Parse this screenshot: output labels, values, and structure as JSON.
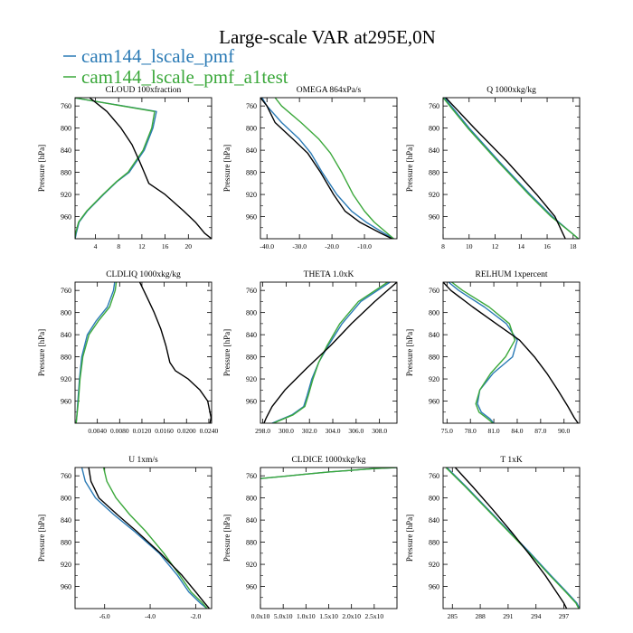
{
  "figure": {
    "title": "Large-scale VAR at295E,0N",
    "legend": [
      {
        "name": "cam144_lscale_pmf",
        "color": "#2a7ab5"
      },
      {
        "name": "cam144_lscale_pmf_a1test",
        "color": "#3ba83b"
      }
    ],
    "reference_color": "#000000"
  },
  "chart_data": [
    {
      "type": "line",
      "title": "CLOUD 100xfraction",
      "ylabel": "Pressure [hPa]",
      "xlim": [
        0.5,
        24
      ],
      "ylim": [
        745,
        1000
      ],
      "xticks": [
        4,
        8,
        12,
        16,
        20
      ],
      "xtick_labels": [
        "4",
        "8",
        "12",
        "16",
        "20"
      ],
      "yticks": [
        760,
        800,
        840,
        880,
        920,
        960
      ],
      "series": [
        {
          "y": [
            745,
            770,
            800,
            840,
            880,
            896,
            920,
            950,
            970,
            990,
            996,
            1000
          ],
          "x": [
            0.2,
            14.5,
            13.9,
            12.4,
            9.8,
            7.8,
            5.4,
            2.6,
            1.2,
            0.7,
            0.6,
            0.5
          ]
        },
        {
          "y": [
            745,
            770,
            800,
            840,
            880,
            896,
            920,
            950,
            970,
            990,
            996,
            1000
          ],
          "x": [
            0.3,
            14.2,
            13.7,
            12.2,
            9.6,
            7.7,
            5.3,
            2.5,
            1.1,
            0.6,
            0.5,
            0.5
          ]
        },
        {
          "y": [
            745,
            770,
            800,
            830,
            860,
            880,
            900,
            920,
            950,
            970,
            990,
            1000
          ],
          "x": [
            3.0,
            6.0,
            8.4,
            10.3,
            11.6,
            12.4,
            13.2,
            16.0,
            19.2,
            21.2,
            22.8,
            24.0
          ]
        }
      ]
    },
    {
      "type": "line",
      "title": "OMEGA 864xPa/s",
      "ylabel": "Pressure [hPa]",
      "xlim": [
        -42,
        0
      ],
      "ylim": [
        745,
        1000
      ],
      "xticks": [
        -40,
        -30,
        -20,
        -10
      ],
      "xtick_labels": [
        "-40.0",
        "-30.0",
        "-20.0",
        "-10.0"
      ],
      "yticks": [
        760,
        800,
        840,
        880,
        920,
        960
      ],
      "series": [
        {
          "y": [
            745,
            760,
            790,
            820,
            845,
            880,
            920,
            950,
            970,
            990,
            1000
          ],
          "x": [
            -41.5,
            -40.0,
            -35.5,
            -30.0,
            -26.5,
            -23.0,
            -18.5,
            -14.0,
            -9.5,
            -4.0,
            -1.0
          ]
        },
        {
          "y": [
            745,
            760,
            790,
            820,
            845,
            880,
            920,
            950,
            970,
            990,
            1000
          ],
          "x": [
            -37.5,
            -35.5,
            -29.5,
            -24.0,
            -20.5,
            -17.0,
            -13.5,
            -10.0,
            -7.0,
            -3.0,
            -1.0
          ]
        },
        {
          "y": [
            745,
            760,
            790,
            820,
            845,
            880,
            920,
            950,
            970,
            990,
            1000
          ],
          "x": [
            -42.0,
            -40.0,
            -37.5,
            -32.0,
            -27.5,
            -23.5,
            -19.5,
            -16.0,
            -11.5,
            -5.0,
            -1.5
          ]
        }
      ]
    },
    {
      "type": "line",
      "title": "Q 1000xkg/kg",
      "ylabel": "Pressure [hPa]",
      "xlim": [
        8,
        18.5
      ],
      "ylim": [
        745,
        1000
      ],
      "xticks": [
        8,
        10,
        12,
        14,
        16,
        18
      ],
      "xtick_labels": [
        "8",
        "10",
        "12",
        "14",
        "16",
        "18"
      ],
      "yticks": [
        760,
        800,
        840,
        880,
        920,
        960
      ],
      "series": [
        {
          "y": [
            745,
            800,
            860,
            920,
            960,
            990,
            1000
          ],
          "x": [
            8.1,
            10.0,
            12.3,
            14.7,
            16.4,
            17.9,
            18.4
          ]
        },
        {
          "y": [
            745,
            800,
            860,
            920,
            960,
            990,
            1000
          ],
          "x": [
            8.0,
            9.9,
            12.2,
            14.6,
            16.3,
            17.9,
            18.4
          ]
        },
        {
          "y": [
            745,
            800,
            860,
            920,
            960,
            990,
            1000
          ],
          "x": [
            8.2,
            10.4,
            12.9,
            15.2,
            16.6,
            17.2,
            17.4
          ]
        }
      ]
    },
    {
      "type": "line",
      "title": "CLDLIQ 1000xkg/kg",
      "ylabel": "Pressure [hPa]",
      "xlim": [
        0,
        0.0245
      ],
      "ylim": [
        745,
        1000
      ],
      "xticks": [
        0.004,
        0.008,
        0.012,
        0.016,
        0.02,
        0.024
      ],
      "xtick_labels": [
        "0.0040",
        "0.0080",
        "0.0120",
        "0.0160",
        "0.0200",
        "0.0240"
      ],
      "yticks": [
        760,
        800,
        840,
        880,
        920,
        960
      ],
      "series": [
        {
          "y": [
            745,
            760,
            790,
            815,
            840,
            880,
            920,
            960,
            990,
            1000
          ],
          "x": [
            0.0071,
            0.0069,
            0.0058,
            0.0038,
            0.0022,
            0.0012,
            0.0008,
            0.0005,
            0.0003,
            0.0002
          ]
        },
        {
          "y": [
            745,
            760,
            790,
            815,
            840,
            880,
            920,
            960,
            990,
            1000
          ],
          "x": [
            0.0074,
            0.0072,
            0.0062,
            0.0042,
            0.0025,
            0.0014,
            0.0009,
            0.0006,
            0.0003,
            0.0002
          ]
        },
        {
          "y": [
            745,
            770,
            800,
            830,
            860,
            890,
            905,
            920,
            940,
            960,
            990,
            1000
          ],
          "x": [
            0.0116,
            0.0128,
            0.0142,
            0.0154,
            0.0163,
            0.017,
            0.018,
            0.0203,
            0.0224,
            0.0238,
            0.0244,
            0.0242
          ]
        }
      ]
    },
    {
      "type": "line",
      "title": "THETA 1.0xK",
      "ylabel": "Pressure [hPa]",
      "xlim": [
        297.8,
        309.5
      ],
      "ylim": [
        745,
        1000
      ],
      "xticks": [
        298,
        300,
        302,
        304,
        306,
        308
      ],
      "xtick_labels": [
        "298.0",
        "300.0",
        "302.0",
        "304.0",
        "306.0",
        "308.0"
      ],
      "yticks": [
        760,
        800,
        840,
        880,
        920,
        960
      ],
      "series": [
        {
          "y": [
            745,
            780,
            820,
            860,
            890,
            920,
            950,
            970,
            985,
            1000
          ],
          "x": [
            308.9,
            306.4,
            304.8,
            303.6,
            302.8,
            302.2,
            301.8,
            301.5,
            300.5,
            298.8
          ]
        },
        {
          "y": [
            745,
            780,
            820,
            860,
            890,
            920,
            950,
            970,
            985,
            1000
          ],
          "x": [
            308.7,
            306.2,
            304.6,
            303.5,
            302.8,
            302.3,
            301.9,
            301.6,
            300.6,
            298.9
          ]
        },
        {
          "y": [
            745,
            780,
            820,
            860,
            900,
            940,
            970,
            990,
            1000
          ],
          "x": [
            309.5,
            307.6,
            305.6,
            303.8,
            301.8,
            299.9,
            298.8,
            298.3,
            298.1
          ]
        }
      ]
    },
    {
      "type": "line",
      "title": "RELHUM 1xpercent",
      "ylabel": "Pressure [hPa]",
      "xlim": [
        74.5,
        92
      ],
      "ylim": [
        745,
        1000
      ],
      "xticks": [
        75,
        78,
        81,
        84,
        87,
        90
      ],
      "xtick_labels": [
        "75.0",
        "78.0",
        "81.0",
        "84.0",
        "87.0",
        "90.0"
      ],
      "yticks": [
        760,
        800,
        840,
        880,
        920,
        960
      ],
      "series": [
        {
          "y": [
            745,
            760,
            790,
            820,
            850,
            880,
            910,
            940,
            965,
            980,
            992,
            1000
          ],
          "x": [
            75.2,
            76.5,
            79.8,
            82.6,
            84.0,
            83.4,
            80.9,
            79.2,
            78.9,
            79.4,
            80.5,
            81.0
          ]
        },
        {
          "y": [
            745,
            760,
            790,
            820,
            850,
            880,
            910,
            940,
            965,
            980,
            992,
            1000
          ],
          "x": [
            75.6,
            77.0,
            80.4,
            83.0,
            83.7,
            82.5,
            80.6,
            79.2,
            78.7,
            79.1,
            80.2,
            80.9
          ]
        },
        {
          "y": [
            745,
            760,
            790,
            820,
            850,
            880,
            910,
            940,
            970,
            990,
            1000
          ],
          "x": [
            74.5,
            75.5,
            78.3,
            81.3,
            84.3,
            86.2,
            87.8,
            89.2,
            90.5,
            91.3,
            91.8
          ]
        }
      ]
    },
    {
      "type": "line",
      "title": "U 1xm/s",
      "ylabel": "Pressure [hPa]",
      "xlim": [
        -7.3,
        -1.3
      ],
      "ylim": [
        745,
        1000
      ],
      "xticks": [
        -6,
        -4,
        -2
      ],
      "xtick_labels": [
        "-6.0",
        "-4.0",
        "-2.0"
      ],
      "yticks": [
        760,
        800,
        840,
        880,
        920,
        960
      ],
      "series": [
        {
          "y": [
            745,
            770,
            800,
            830,
            860,
            900,
            940,
            970,
            990,
            1000
          ],
          "x": [
            -7.0,
            -6.85,
            -6.4,
            -5.6,
            -4.7,
            -3.6,
            -2.8,
            -2.3,
            -1.8,
            -1.5
          ]
        },
        {
          "y": [
            745,
            770,
            800,
            830,
            860,
            900,
            940,
            970,
            990,
            1000
          ],
          "x": [
            -6.05,
            -5.9,
            -5.5,
            -4.9,
            -4.2,
            -3.4,
            -2.7,
            -2.2,
            -1.7,
            -1.5
          ]
        },
        {
          "y": [
            745,
            770,
            800,
            830,
            860,
            900,
            940,
            970,
            990,
            1000
          ],
          "x": [
            -6.7,
            -6.6,
            -6.25,
            -5.45,
            -4.6,
            -3.55,
            -2.6,
            -2.0,
            -1.6,
            -1.4
          ]
        }
      ]
    },
    {
      "type": "line",
      "title": "CLDICE 1000xkg/kg",
      "ylabel": "Pressure [hPa]",
      "xlim": [
        0,
        6
      ],
      "ylim": [
        745,
        1000
      ],
      "xticks": [
        0,
        1,
        2,
        3,
        4,
        5
      ],
      "xtick_labels": [
        "0.0x10",
        "5.0x10",
        "1.0x10",
        "1.5x10",
        "2.0x10",
        "2.5x10"
      ],
      "yticks": [
        760,
        800,
        840,
        880,
        920,
        960
      ],
      "series": [
        {
          "y": [
            765,
            761,
            757,
            753,
            750,
            747,
            745
          ],
          "x": [
            0,
            1.0,
            2.0,
            3.0,
            4.0,
            5.0,
            6.0
          ]
        },
        {
          "y": [
            765,
            761,
            757,
            753,
            750,
            747,
            745
          ],
          "x": [
            0,
            1.0,
            2.0,
            3.0,
            4.0,
            5.0,
            6.0
          ]
        }
      ]
    },
    {
      "type": "line",
      "title": "T 1xK",
      "ylabel": "Pressure [hPa]",
      "xlim": [
        284,
        298.7
      ],
      "ylim": [
        745,
        1000
      ],
      "xticks": [
        285,
        288,
        291,
        294,
        297
      ],
      "xtick_labels": [
        "285",
        "288",
        "291",
        "294",
        "297"
      ],
      "yticks": [
        760,
        800,
        840,
        880,
        920,
        960
      ],
      "series": [
        {
          "y": [
            745,
            780,
            820,
            860,
            900,
            940,
            970,
            990,
            1000
          ],
          "x": [
            284.4,
            286.5,
            288.8,
            291.1,
            293.4,
            295.6,
            297.3,
            298.4,
            298.7
          ]
        },
        {
          "y": [
            745,
            780,
            820,
            860,
            900,
            940,
            970,
            990,
            1000
          ],
          "x": [
            284.3,
            286.4,
            288.7,
            291.0,
            293.3,
            295.5,
            297.2,
            298.3,
            298.6
          ]
        },
        {
          "y": [
            745,
            780,
            820,
            860,
            900,
            940,
            970,
            990,
            1000
          ],
          "x": [
            285.3,
            287.2,
            289.3,
            291.3,
            293.2,
            295.0,
            296.2,
            297.0,
            297.3
          ]
        }
      ]
    }
  ]
}
